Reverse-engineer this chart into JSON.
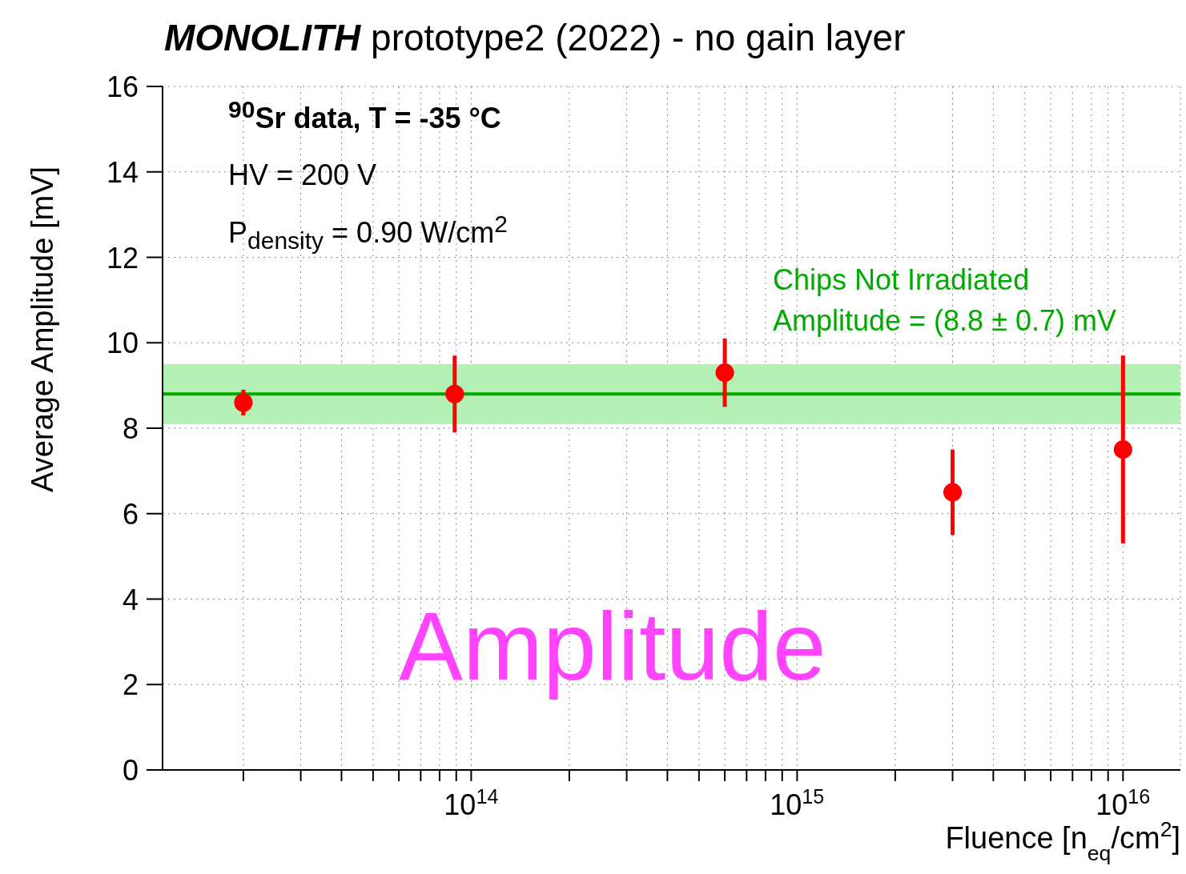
{
  "chart_data": {
    "type": "scatter",
    "title": "MONOLITH prototype2 (2022) - no gain layer",
    "xlabel": "Fluence [n$_{eq}$/cm$^{2}$]",
    "ylabel": "Average Amplitude [mV]",
    "x": [
      20000000000000.0,
      89000000000000.0,
      600000000000000.0,
      3000000000000000.0,
      1e+16
    ],
    "series": [
      {
        "color": "#ff0000",
        "values": [
          8.6,
          8.8,
          9.3,
          6.5,
          7.5
        ],
        "errors": [
          [
            8.3,
            8.9
          ],
          [
            7.9,
            9.7
          ],
          [
            8.5,
            10.1
          ],
          [
            5.5,
            7.5
          ],
          [
            5.3,
            9.7
          ]
        ]
      }
    ],
    "marker": "circle",
    "log": "x",
    "grid": true,
    "xlim": [
      11300000000000.0,
      1.5e+16
    ],
    "xticks": [
      {
        "value": 20000000000000.0,
        "label": null
      },
      {
        "value": 30000000000000.0,
        "label": null
      },
      {
        "value": 40000000000000.0,
        "label": null
      },
      {
        "value": 50000000000000.0,
        "label": null
      },
      {
        "value": 60000000000000.0,
        "label": null
      },
      {
        "value": 70000000000000.0,
        "label": null
      },
      {
        "value": 80000000000000.0,
        "label": null
      },
      {
        "value": 90000000000000.0,
        "label": null
      },
      {
        "value": 100000000000000.0,
        "label": "10$^{14}$"
      },
      {
        "value": 200000000000000.0,
        "label": null
      },
      {
        "value": 300000000000000.0,
        "label": null
      },
      {
        "value": 400000000000000.0,
        "label": null
      },
      {
        "value": 500000000000000.0,
        "label": null
      },
      {
        "value": 600000000000000.0,
        "label": null
      },
      {
        "value": 700000000000000.0,
        "label": null
      },
      {
        "value": 800000000000000.0,
        "label": null
      },
      {
        "value": 900000000000000.0,
        "label": null
      },
      {
        "value": 1000000000000000.0,
        "label": "10$^{15}$"
      },
      {
        "value": 2000000000000000.0,
        "label": null
      },
      {
        "value": 3000000000000000.0,
        "label": null
      },
      {
        "value": 4000000000000000.0,
        "label": null
      },
      {
        "value": 5000000000000000.0,
        "label": null
      },
      {
        "value": 6000000000000000.0,
        "label": null
      },
      {
        "value": 7000000000000000.0,
        "label": null
      },
      {
        "value": 8000000000000000.0,
        "label": null
      },
      {
        "value": 9000000000000000.0,
        "label": null
      },
      {
        "value": 1e+16,
        "label": "10$^{16}$"
      }
    ],
    "ylim": [
      0,
      16
    ],
    "yticks": [
      0,
      2,
      4,
      6,
      8,
      10,
      12,
      14,
      16
    ],
    "ref_lines": [
      {
        "axis": "y",
        "value": 8.8,
        "label": "Chips Not Irradiated",
        "color": "#00aa00",
        "line_style": "solid"
      }
    ],
    "bands": [
      {
        "axis": "y",
        "from": 8.1,
        "to": 9.5,
        "label": "Amplitude = (8.8 ± 0.7) mV",
        "color": "#b3f0b3"
      }
    ],
    "annotations": [
      "$^{90}$Sr data, T = -35  °C",
      "HV = 200 V",
      "P$_{density}$ = 0.90 W/cm$^{2}$",
      "Amplitude"
    ]
  }
}
